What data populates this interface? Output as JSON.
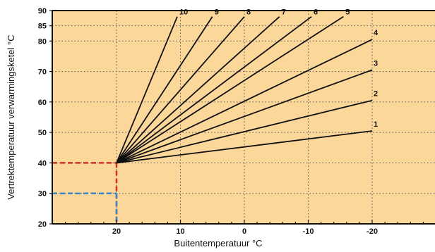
{
  "chart_data": {
    "type": "line",
    "xlabel": "Buitentemperatuur °C",
    "ylabel": "Vertrektemperatuur verwarmingsketel °C",
    "xlim": [
      30,
      -30
    ],
    "ylim": [
      20,
      90
    ],
    "x_ticks": [
      20,
      10,
      0,
      -10,
      -20
    ],
    "x_tick_labels": [
      "20",
      "10",
      "0",
      "-10",
      "-20"
    ],
    "y_ticks": [
      20,
      30,
      40,
      50,
      60,
      70,
      80,
      85,
      90
    ],
    "y_tick_labels": [
      "20",
      "30",
      "40",
      "50",
      "60",
      "70",
      "80",
      "85",
      "90"
    ],
    "grid": true,
    "background_color": "#FCD79A",
    "line_color": "#111111",
    "series": [
      {
        "name": "1",
        "x": [
          20,
          -20
        ],
        "y": [
          40,
          50.5
        ]
      },
      {
        "name": "2",
        "x": [
          20,
          -20
        ],
        "y": [
          40,
          60.5
        ]
      },
      {
        "name": "3",
        "x": [
          20,
          -20
        ],
        "y": [
          40,
          70.5
        ]
      },
      {
        "name": "4",
        "x": [
          20,
          -20
        ],
        "y": [
          40,
          80.5
        ]
      },
      {
        "name": "5",
        "x": [
          20,
          -15.5
        ],
        "y": [
          40,
          88
        ]
      },
      {
        "name": "6",
        "x": [
          20,
          -10.5
        ],
        "y": [
          40,
          88
        ]
      },
      {
        "name": "7",
        "x": [
          20,
          -5.5
        ],
        "y": [
          40,
          88
        ]
      },
      {
        "name": "8",
        "x": [
          20,
          0
        ],
        "y": [
          40,
          88
        ]
      },
      {
        "name": "9",
        "x": [
          20,
          5
        ],
        "y": [
          40,
          88
        ]
      },
      {
        "name": "10",
        "x": [
          20,
          10.5
        ],
        "y": [
          40,
          88
        ]
      }
    ],
    "reference_lines": [
      {
        "color": "#d0312d",
        "x": 20,
        "y": 40
      },
      {
        "color": "#3a86c8",
        "x": 20,
        "y": 30
      }
    ]
  }
}
